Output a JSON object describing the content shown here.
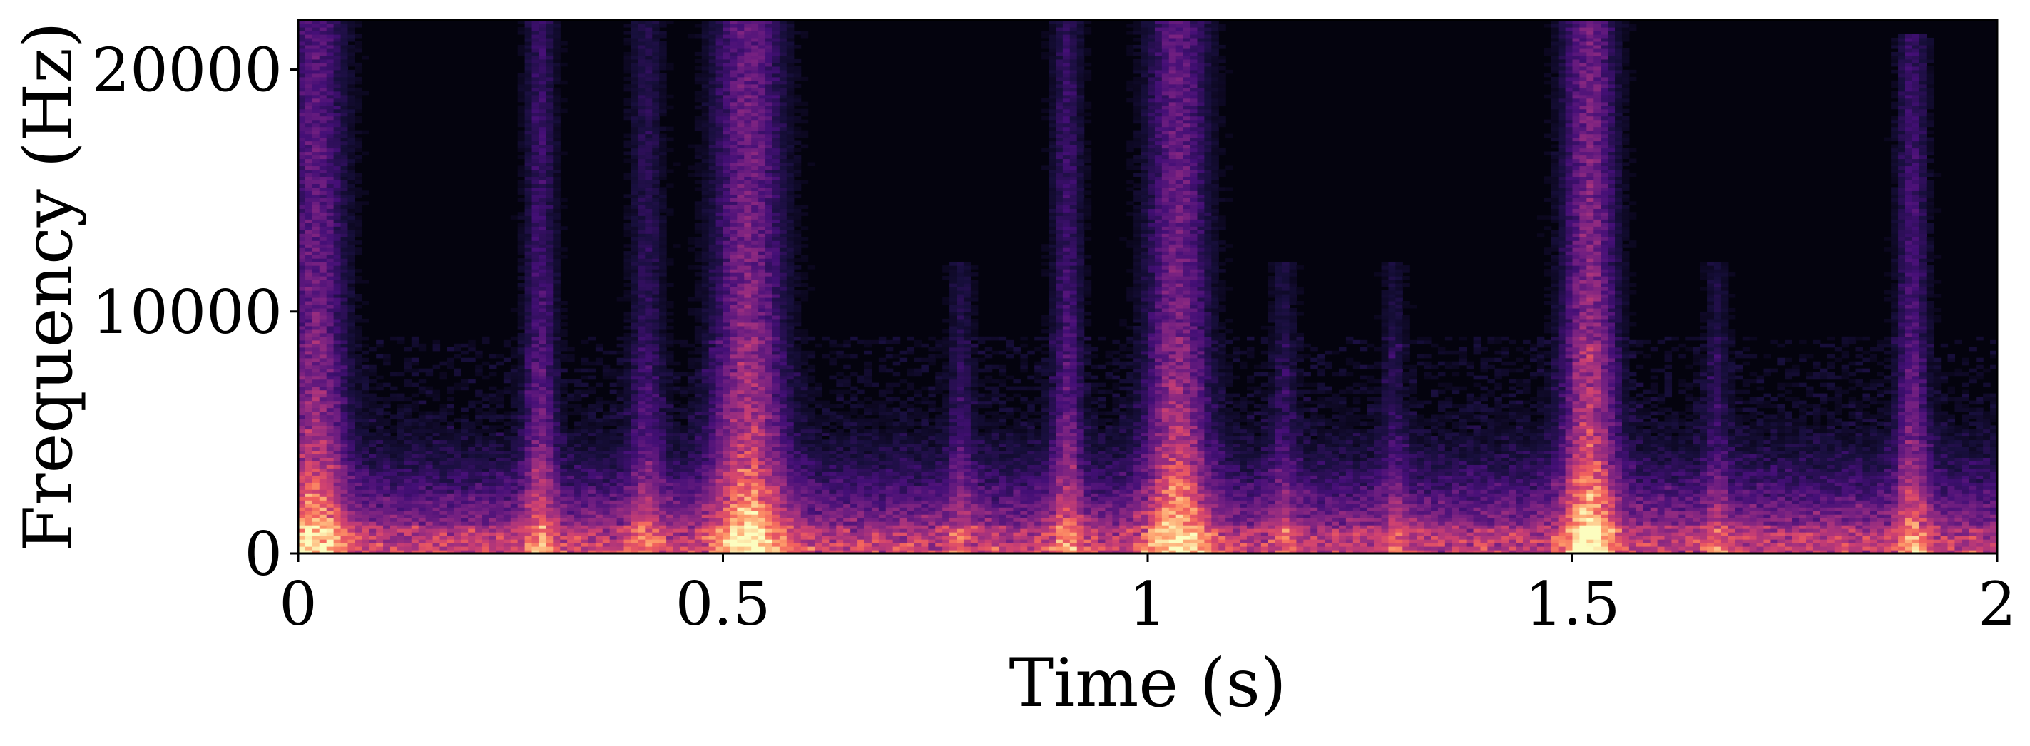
{
  "chart_data": {
    "type": "heatmap",
    "title": "",
    "xlabel": "Time (s)",
    "ylabel": "Frequency (Hz)",
    "xlim": [
      0,
      2
    ],
    "ylim": [
      0,
      22050
    ],
    "x_ticks": [
      {
        "value": 0,
        "label": "0"
      },
      {
        "value": 0.5,
        "label": "0.5"
      },
      {
        "value": 1,
        "label": "1"
      },
      {
        "value": 1.5,
        "label": "1.5"
      },
      {
        "value": 2,
        "label": "2"
      }
    ],
    "y_ticks": [
      {
        "value": 0,
        "label": "0"
      },
      {
        "value": 10000,
        "label": "10000"
      },
      {
        "value": 20000,
        "label": "20000"
      }
    ],
    "colormap": [
      "#000004",
      "#180f3d",
      "#440f76",
      "#721f81",
      "#9e2f7f",
      "#cd4071",
      "#f1605d",
      "#fd9668",
      "#feca8d",
      "#fcfdbf"
    ],
    "background_floor": 0.04,
    "low_freq_band": {
      "f_max": 3000,
      "intensity": 0.55
    },
    "transients": [
      {
        "t": 0.02,
        "width": 0.035,
        "intensity": 0.62,
        "f_max": 22050
      },
      {
        "t": 0.285,
        "width": 0.018,
        "intensity": 0.42,
        "f_max": 22050
      },
      {
        "t": 0.41,
        "width": 0.02,
        "intensity": 0.3,
        "f_max": 22050
      },
      {
        "t": 0.53,
        "width": 0.04,
        "intensity": 0.72,
        "f_max": 22050
      },
      {
        "t": 0.78,
        "width": 0.015,
        "intensity": 0.22,
        "f_max": 12000
      },
      {
        "t": 0.905,
        "width": 0.018,
        "intensity": 0.4,
        "f_max": 22050
      },
      {
        "t": 1.035,
        "width": 0.035,
        "intensity": 0.68,
        "f_max": 22050
      },
      {
        "t": 1.16,
        "width": 0.015,
        "intensity": 0.2,
        "f_max": 12000
      },
      {
        "t": 1.29,
        "width": 0.015,
        "intensity": 0.18,
        "f_max": 12000
      },
      {
        "t": 1.52,
        "width": 0.03,
        "intensity": 0.78,
        "f_max": 22050
      },
      {
        "t": 1.67,
        "width": 0.015,
        "intensity": 0.2,
        "f_max": 12000
      },
      {
        "t": 1.9,
        "width": 0.018,
        "intensity": 0.45,
        "f_max": 21500
      }
    ]
  }
}
